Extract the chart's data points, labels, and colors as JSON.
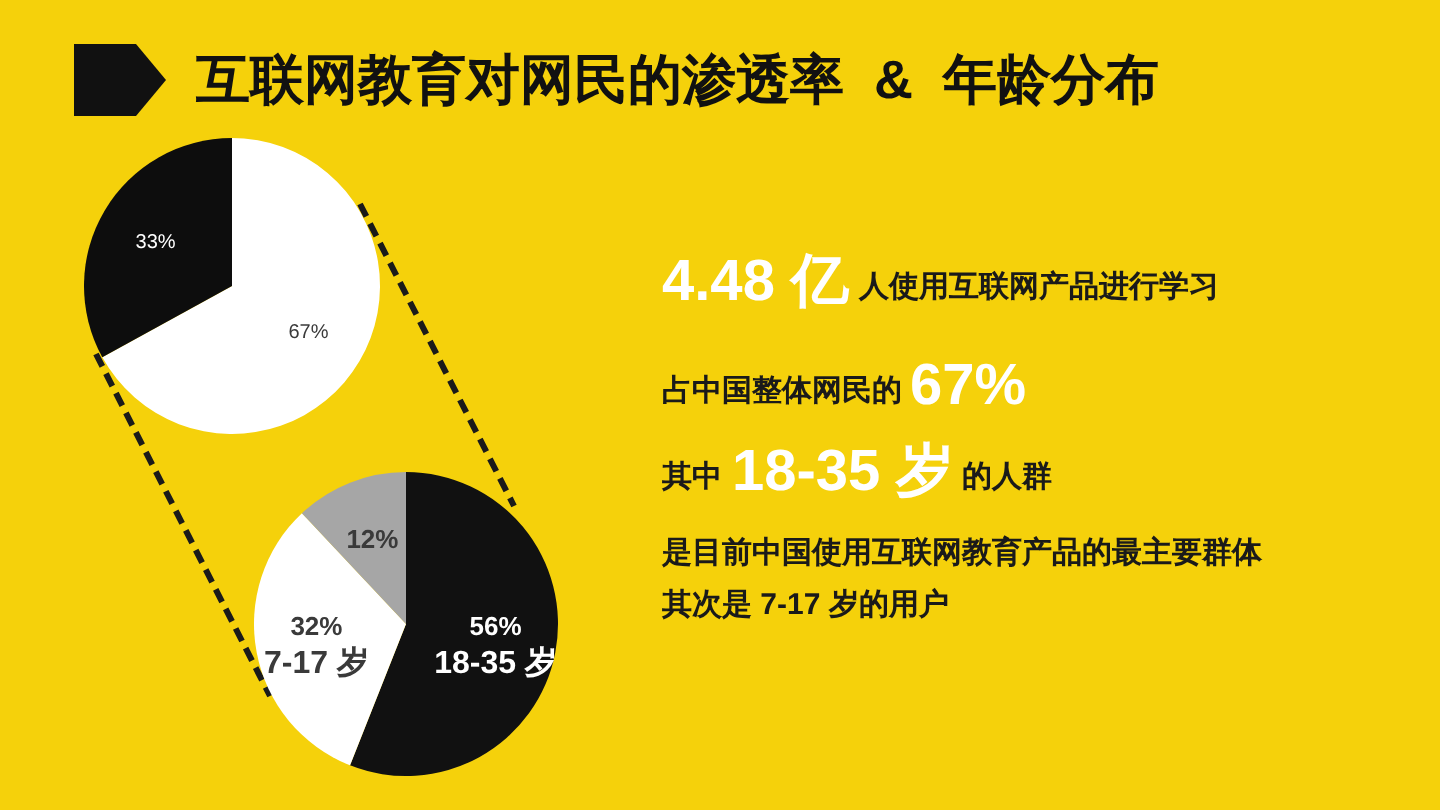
{
  "chart_data": [
    {
      "type": "pie",
      "title": "互联网教育对网民的渗透率  &  年龄分布",
      "categories": [
        null,
        null
      ],
      "values": [
        67,
        33
      ],
      "colors": [
        "#ffffff",
        "#0d0d0d"
      ],
      "value_labels": [
        "67%",
        "33%"
      ]
    },
    {
      "type": "pie",
      "categories": [
        "18-35 岁",
        "7-17 岁",
        null
      ],
      "values": [
        56,
        32,
        12
      ],
      "colors": [
        "#111111",
        "#ffffff",
        "#a6a6a6"
      ],
      "value_labels": [
        "56%",
        "32%",
        "12%"
      ]
    },
    {
      "type": "other",
      "annotations": [
        "4.48 亿",
        "人使用互联网产品进行学习",
        "占中国整体网民的",
        "67%",
        "其中",
        "18-35 岁",
        "的人群",
        "是目前中国使用互联网教育产品的最主要群体",
        "其次是 7-17 岁的用户"
      ]
    }
  ]
}
